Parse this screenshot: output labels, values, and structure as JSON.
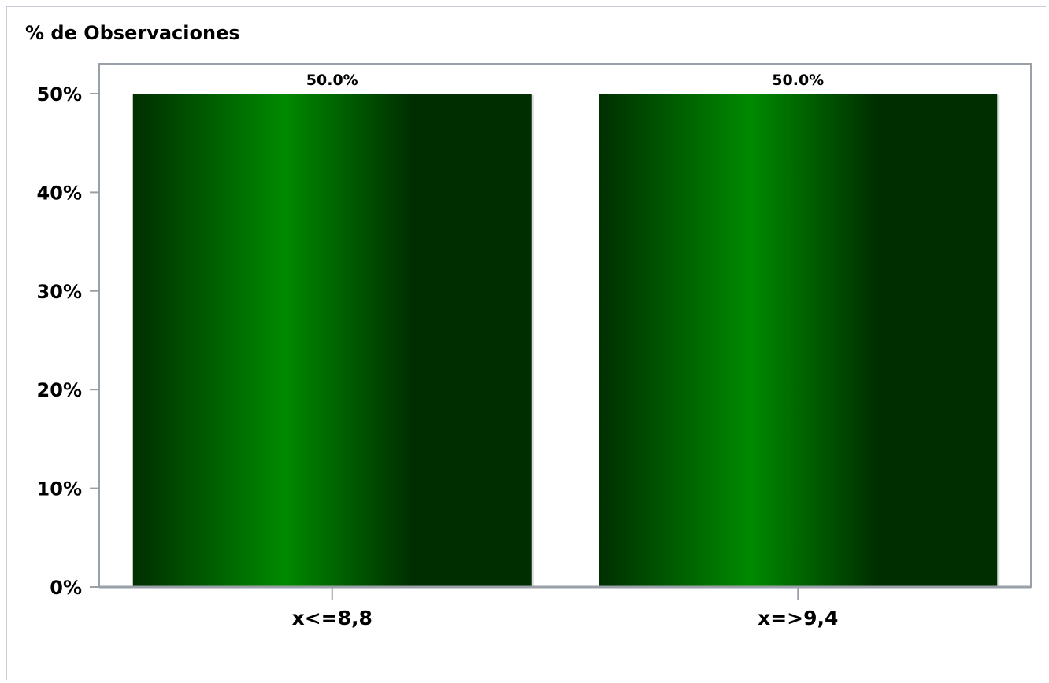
{
  "chart_data": {
    "type": "bar",
    "title": "% de Observaciones",
    "xlabel": "",
    "ylabel": "",
    "categories": [
      "x<=8,8",
      "x=>9,4"
    ],
    "values": [
      50.0,
      50.0
    ],
    "data_labels": [
      "50.0%",
      "50.0%"
    ],
    "ylim": [
      0,
      50
    ],
    "yticks": [
      0,
      10,
      20,
      30,
      40,
      50
    ],
    "ytick_labels": [
      "0%",
      "10%",
      "20%",
      "30%",
      "40%",
      "50%"
    ],
    "grid": false,
    "legend": "none",
    "colors": {
      "bar_dark": "#002e00",
      "bar_light": "#008a00",
      "axis": "#9aa0a8",
      "text": "#000000"
    }
  }
}
